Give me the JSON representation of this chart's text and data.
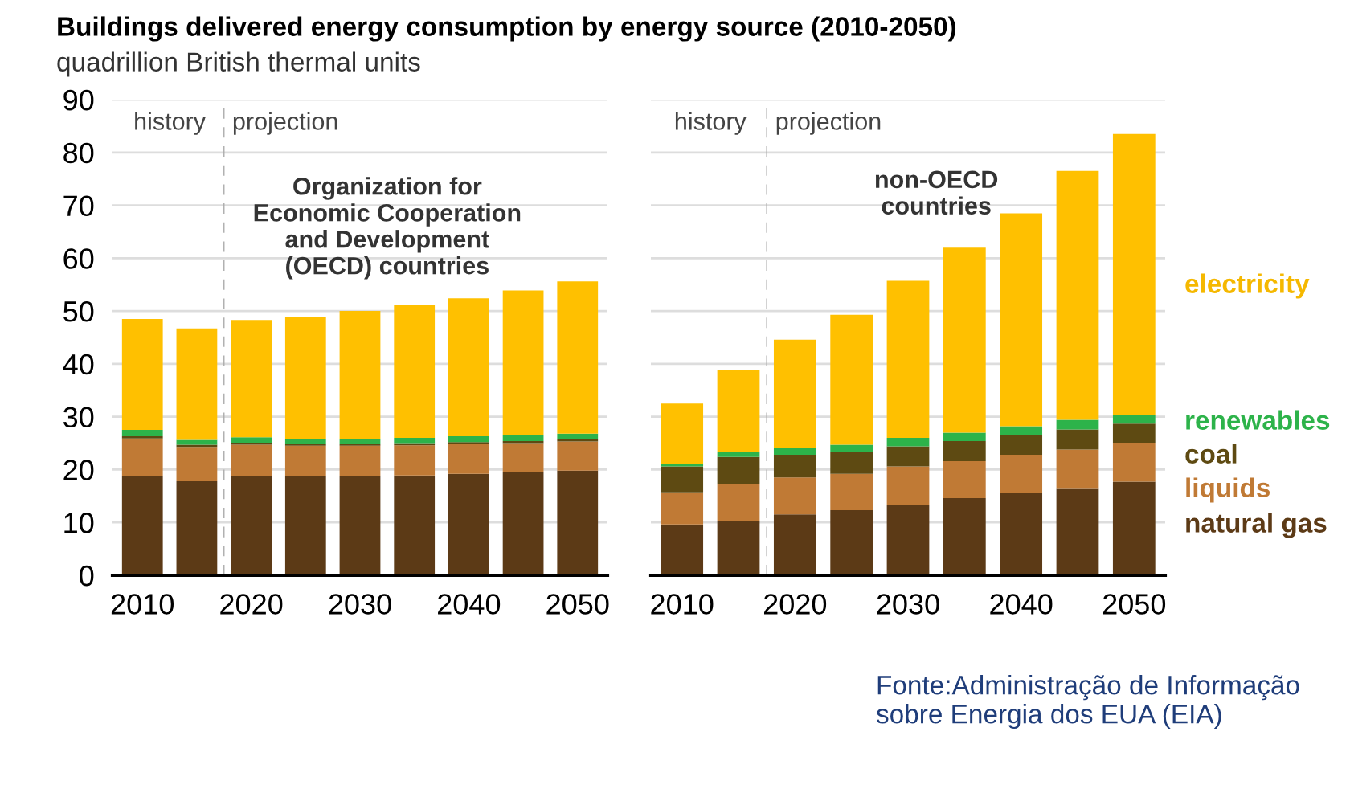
{
  "chart_data": [
    {
      "type": "bar",
      "stacked": true,
      "title": "Buildings delivered energy consumption by energy source (2010-2050)",
      "subtitle": "quadrillion British thermal units",
      "categories": [
        "2010",
        null,
        "2020",
        null,
        "2030",
        null,
        "2040",
        null,
        "2050"
      ],
      "series": [
        {
          "color": "#5c3a16",
          "values": [
            18.8,
            17.8,
            18.7,
            18.7,
            18.7,
            18.9,
            19.2,
            19.5,
            19.8
          ]
        },
        {
          "color": "#c07a35",
          "values": [
            7.1,
            6.5,
            6.0,
            5.8,
            5.8,
            5.7,
            5.6,
            5.5,
            5.5
          ]
        },
        {
          "color": "#5e4a12",
          "values": [
            0.4,
            0.4,
            0.4,
            0.4,
            0.4,
            0.4,
            0.4,
            0.4,
            0.4
          ]
        },
        {
          "color": "#2db34a",
          "values": [
            1.2,
            0.9,
            1.0,
            0.9,
            0.9,
            1.0,
            1.1,
            1.1,
            1.1
          ]
        },
        {
          "color": "#ffc000",
          "values": [
            21.0,
            21.1,
            22.2,
            23.0,
            24.2,
            25.2,
            26.1,
            27.4,
            28.8
          ]
        }
      ],
      "ylim": [
        0,
        90
      ],
      "yticks": [
        0,
        10,
        20,
        30,
        40,
        50,
        60,
        70,
        80,
        90
      ],
      "grid": "y",
      "annotations": [
        "history",
        "projection",
        "Organization for\nEconomic Cooperation\nand Development\n(OECD) countries"
      ]
    },
    {
      "type": "bar",
      "stacked": true,
      "categories": [
        "2010",
        null,
        "2020",
        null,
        "2030",
        null,
        "2040",
        null,
        "2050"
      ],
      "series": [
        {
          "name": "natural gas",
          "color": "#5c3a16",
          "values": [
            9.6,
            10.2,
            11.5,
            12.3,
            13.3,
            14.6,
            15.6,
            16.5,
            17.7
          ]
        },
        {
          "name": "liquids",
          "color": "#c07a35",
          "values": [
            6.1,
            7.1,
            7.0,
            6.9,
            7.3,
            7.0,
            7.2,
            7.3,
            7.4
          ]
        },
        {
          "name": "coal",
          "color": "#5e4a12",
          "values": [
            4.9,
            5.1,
            4.3,
            4.2,
            3.8,
            3.8,
            3.7,
            3.8,
            3.6
          ]
        },
        {
          "name": "renewables",
          "color": "#2db34a",
          "values": [
            0.4,
            1.0,
            1.3,
            1.3,
            1.6,
            1.6,
            1.7,
            1.8,
            1.6
          ]
        },
        {
          "name": "electricity",
          "color": "#ffc000",
          "values": [
            11.5,
            15.5,
            20.5,
            24.6,
            29.7,
            35.0,
            40.3,
            47.1,
            53.2
          ]
        }
      ],
      "ylim": [
        0,
        90
      ],
      "yticks": [
        0,
        10,
        20,
        30,
        40,
        50,
        60,
        70,
        80,
        90
      ],
      "grid": "y",
      "tick_labels": "x",
      "legend": "right",
      "annotations": [
        "history",
        "projection",
        "non-OECD\ncountries",
        "Fonte:Administração de Informação sobre Energia dos EUA (EIA)"
      ]
    }
  ]
}
